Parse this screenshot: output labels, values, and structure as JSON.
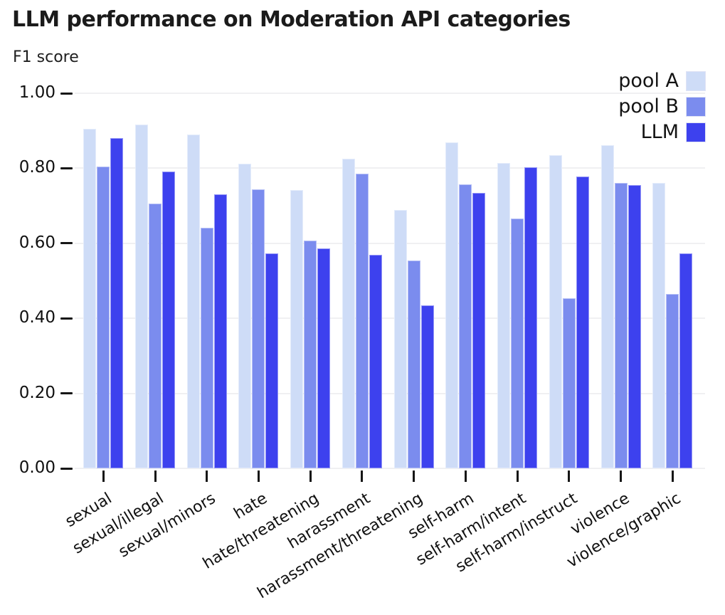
{
  "title": "LLM performance on Moderation API categories",
  "chart_data": {
    "type": "bar",
    "title": "LLM performance on Moderation API categories",
    "ylabel": "F1 score",
    "categories": [
      "sexual",
      "sexual/illegal",
      "sexual/minors",
      "hate",
      "hate/threatening",
      "harassment",
      "harassment/threatening",
      "self-harm",
      "self-harm/intent",
      "self-harm/instruct",
      "violence",
      "violence/graphic"
    ],
    "series": [
      {
        "name": "pool A",
        "color": "#cedcf7",
        "values": [
          0.905,
          0.917,
          0.89,
          0.813,
          0.742,
          0.826,
          0.688,
          0.87,
          0.814,
          0.834,
          0.861,
          0.76
        ]
      },
      {
        "name": "pool B",
        "color": "#7b8cee",
        "values": [
          0.805,
          0.705,
          0.642,
          0.743,
          0.608,
          0.786,
          0.554,
          0.757,
          0.666,
          0.453,
          0.761,
          0.464
        ]
      },
      {
        "name": "LLM",
        "color": "#3d41ee",
        "values": [
          0.88,
          0.792,
          0.73,
          0.573,
          0.586,
          0.57,
          0.434,
          0.734,
          0.802,
          0.778,
          0.756,
          0.573
        ]
      }
    ],
    "ylim": [
      0,
      1
    ],
    "ytick_step": 0.2,
    "ytick_labels": [
      "0.00",
      "0.20",
      "0.40",
      "0.60",
      "0.80",
      "1.00"
    ],
    "grid": true,
    "legend_position": "top-right",
    "bar_label_rotation_deg": -31
  }
}
